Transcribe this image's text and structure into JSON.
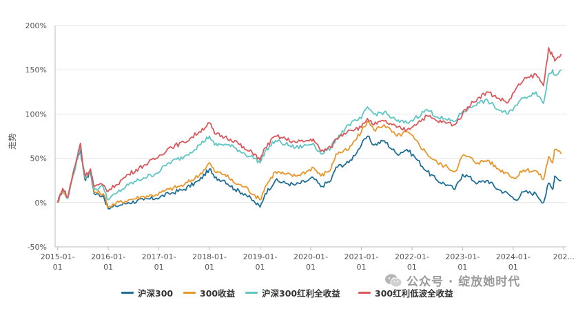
{
  "colors": {
    "hs300": "#1f6e96",
    "hs300_return": "#e8952a",
    "hs300_div": "#5fc4c4",
    "div_lowvol": "#d9585c",
    "grid": "#e6e6e6",
    "axis": "#bbbbbb"
  },
  "watermark": {
    "icon": "wechat-icon",
    "text": "公众号 · 绽放她时代"
  },
  "chart_data": {
    "type": "line",
    "ylabel": "走势",
    "ylim": [
      -50,
      200
    ],
    "ytick_values": [
      -50,
      0,
      50,
      100,
      150,
      200
    ],
    "ytick_labels": [
      "-50%",
      "0%",
      "50%",
      "100%",
      "150%",
      "200%"
    ],
    "xlim": [
      2014.95,
      2025.05
    ],
    "xtick_values": [
      2015,
      2016,
      2017,
      2018,
      2019,
      2020,
      2021,
      2022,
      2023,
      2024,
      2025
    ],
    "xtick_labels": [
      [
        "2015-01-",
        "01"
      ],
      [
        "2016-01-",
        "01"
      ],
      [
        "2017-01-",
        "01"
      ],
      [
        "2018-01-",
        "01"
      ],
      [
        "2019-01-",
        "01"
      ],
      [
        "2020-01-",
        "01"
      ],
      [
        "2021-01-",
        "01"
      ],
      [
        "2022-01-",
        "01"
      ],
      [
        "2023-01-",
        "01"
      ],
      [
        "2024-01-",
        "01"
      ],
      [
        "202...",
        ""
      ]
    ],
    "grid": "horizontal",
    "legend_position": "bottom",
    "series": [
      {
        "key": "hs300",
        "name": "沪深300",
        "points": [
          [
            2015.0,
            0
          ],
          [
            2015.1,
            15
          ],
          [
            2015.2,
            5
          ],
          [
            2015.3,
            30
          ],
          [
            2015.4,
            52
          ],
          [
            2015.45,
            60
          ],
          [
            2015.5,
            40
          ],
          [
            2015.55,
            25
          ],
          [
            2015.65,
            35
          ],
          [
            2015.72,
            10
          ],
          [
            2015.9,
            8
          ],
          [
            2016.0,
            -7
          ],
          [
            2016.15,
            -4
          ],
          [
            2016.4,
            0
          ],
          [
            2016.7,
            3
          ],
          [
            2016.95,
            5
          ],
          [
            2017.2,
            10
          ],
          [
            2017.5,
            15
          ],
          [
            2017.8,
            25
          ],
          [
            2018.0,
            38
          ],
          [
            2018.1,
            28
          ],
          [
            2018.3,
            25
          ],
          [
            2018.5,
            15
          ],
          [
            2018.7,
            10
          ],
          [
            2018.9,
            0
          ],
          [
            2019.0,
            -5
          ],
          [
            2019.1,
            10
          ],
          [
            2019.3,
            25
          ],
          [
            2019.5,
            22
          ],
          [
            2019.7,
            20
          ],
          [
            2019.95,
            25
          ],
          [
            2020.05,
            28
          ],
          [
            2020.2,
            18
          ],
          [
            2020.4,
            25
          ],
          [
            2020.5,
            40
          ],
          [
            2020.75,
            45
          ],
          [
            2021.0,
            65
          ],
          [
            2021.12,
            75
          ],
          [
            2021.25,
            65
          ],
          [
            2021.45,
            70
          ],
          [
            2021.7,
            55
          ],
          [
            2021.9,
            60
          ],
          [
            2022.05,
            52
          ],
          [
            2022.3,
            35
          ],
          [
            2022.5,
            25
          ],
          [
            2022.7,
            20
          ],
          [
            2022.85,
            15
          ],
          [
            2023.0,
            32
          ],
          [
            2023.1,
            30
          ],
          [
            2023.3,
            22
          ],
          [
            2023.5,
            25
          ],
          [
            2023.7,
            15
          ],
          [
            2023.9,
            10
          ],
          [
            2024.05,
            3
          ],
          [
            2024.2,
            12
          ],
          [
            2024.45,
            10
          ],
          [
            2024.6,
            0
          ],
          [
            2024.7,
            22
          ],
          [
            2024.78,
            15
          ],
          [
            2024.82,
            30
          ],
          [
            2024.95,
            25
          ]
        ]
      },
      {
        "key": "hs300_return",
        "name": "300收益",
        "points": [
          [
            2015.0,
            0
          ],
          [
            2015.1,
            15
          ],
          [
            2015.2,
            5
          ],
          [
            2015.3,
            32
          ],
          [
            2015.4,
            54
          ],
          [
            2015.45,
            63
          ],
          [
            2015.5,
            42
          ],
          [
            2015.55,
            27
          ],
          [
            2015.65,
            37
          ],
          [
            2015.72,
            12
          ],
          [
            2015.9,
            10
          ],
          [
            2016.0,
            -5
          ],
          [
            2016.15,
            -1
          ],
          [
            2016.4,
            3
          ],
          [
            2016.7,
            7
          ],
          [
            2016.95,
            9
          ],
          [
            2017.2,
            15
          ],
          [
            2017.5,
            20
          ],
          [
            2017.8,
            31
          ],
          [
            2018.0,
            45
          ],
          [
            2018.1,
            35
          ],
          [
            2018.3,
            32
          ],
          [
            2018.5,
            22
          ],
          [
            2018.7,
            18
          ],
          [
            2018.9,
            8
          ],
          [
            2019.0,
            3
          ],
          [
            2019.1,
            18
          ],
          [
            2019.3,
            35
          ],
          [
            2019.5,
            32
          ],
          [
            2019.7,
            30
          ],
          [
            2019.95,
            36
          ],
          [
            2020.05,
            40
          ],
          [
            2020.2,
            30
          ],
          [
            2020.4,
            38
          ],
          [
            2020.5,
            55
          ],
          [
            2020.75,
            60
          ],
          [
            2021.0,
            80
          ],
          [
            2021.12,
            92
          ],
          [
            2021.25,
            82
          ],
          [
            2021.45,
            88
          ],
          [
            2021.7,
            75
          ],
          [
            2021.9,
            80
          ],
          [
            2022.05,
            72
          ],
          [
            2022.3,
            55
          ],
          [
            2022.5,
            45
          ],
          [
            2022.7,
            40
          ],
          [
            2022.85,
            35
          ],
          [
            2023.0,
            53
          ],
          [
            2023.1,
            52
          ],
          [
            2023.3,
            45
          ],
          [
            2023.5,
            48
          ],
          [
            2023.7,
            38
          ],
          [
            2023.9,
            33
          ],
          [
            2024.05,
            27
          ],
          [
            2024.2,
            37
          ],
          [
            2024.45,
            36
          ],
          [
            2024.6,
            26
          ],
          [
            2024.7,
            52
          ],
          [
            2024.78,
            45
          ],
          [
            2024.82,
            60
          ],
          [
            2024.95,
            55
          ]
        ]
      },
      {
        "key": "hs300_div",
        "name": "沪深300红利全收益",
        "points": [
          [
            2015.0,
            0
          ],
          [
            2015.1,
            15
          ],
          [
            2015.2,
            5
          ],
          [
            2015.3,
            30
          ],
          [
            2015.4,
            50
          ],
          [
            2015.45,
            65
          ],
          [
            2015.5,
            40
          ],
          [
            2015.55,
            28
          ],
          [
            2015.65,
            35
          ],
          [
            2015.72,
            15
          ],
          [
            2015.9,
            18
          ],
          [
            2016.0,
            3
          ],
          [
            2016.15,
            10
          ],
          [
            2016.4,
            20
          ],
          [
            2016.7,
            28
          ],
          [
            2016.95,
            33
          ],
          [
            2017.2,
            45
          ],
          [
            2017.5,
            52
          ],
          [
            2017.8,
            65
          ],
          [
            2018.0,
            75
          ],
          [
            2018.1,
            65
          ],
          [
            2018.3,
            66
          ],
          [
            2018.5,
            62
          ],
          [
            2018.7,
            55
          ],
          [
            2018.9,
            50
          ],
          [
            2019.0,
            45
          ],
          [
            2019.1,
            58
          ],
          [
            2019.3,
            70
          ],
          [
            2019.5,
            66
          ],
          [
            2019.7,
            62
          ],
          [
            2019.95,
            65
          ],
          [
            2020.05,
            67
          ],
          [
            2020.2,
            55
          ],
          [
            2020.4,
            62
          ],
          [
            2020.5,
            72
          ],
          [
            2020.75,
            88
          ],
          [
            2021.0,
            95
          ],
          [
            2021.12,
            108
          ],
          [
            2021.25,
            100
          ],
          [
            2021.45,
            102
          ],
          [
            2021.7,
            92
          ],
          [
            2021.9,
            90
          ],
          [
            2022.05,
            95
          ],
          [
            2022.3,
            105
          ],
          [
            2022.5,
            97
          ],
          [
            2022.7,
            93
          ],
          [
            2022.85,
            92
          ],
          [
            2023.0,
            103
          ],
          [
            2023.1,
            105
          ],
          [
            2023.3,
            113
          ],
          [
            2023.5,
            115
          ],
          [
            2023.7,
            105
          ],
          [
            2023.9,
            100
          ],
          [
            2024.05,
            110
          ],
          [
            2024.2,
            118
          ],
          [
            2024.45,
            125
          ],
          [
            2024.6,
            112
          ],
          [
            2024.7,
            145
          ],
          [
            2024.78,
            150
          ],
          [
            2024.82,
            144
          ],
          [
            2024.95,
            150
          ]
        ]
      },
      {
        "key": "div_lowvol",
        "name": "300红利低波全收益",
        "points": [
          [
            2015.0,
            0
          ],
          [
            2015.1,
            16
          ],
          [
            2015.2,
            6
          ],
          [
            2015.3,
            32
          ],
          [
            2015.4,
            55
          ],
          [
            2015.45,
            67
          ],
          [
            2015.5,
            42
          ],
          [
            2015.55,
            30
          ],
          [
            2015.65,
            38
          ],
          [
            2015.72,
            18
          ],
          [
            2015.9,
            20
          ],
          [
            2016.0,
            13
          ],
          [
            2016.15,
            20
          ],
          [
            2016.4,
            32
          ],
          [
            2016.7,
            42
          ],
          [
            2016.95,
            50
          ],
          [
            2017.2,
            62
          ],
          [
            2017.5,
            68
          ],
          [
            2017.8,
            80
          ],
          [
            2018.0,
            90
          ],
          [
            2018.1,
            78
          ],
          [
            2018.3,
            74
          ],
          [
            2018.5,
            70
          ],
          [
            2018.7,
            60
          ],
          [
            2018.9,
            55
          ],
          [
            2019.0,
            48
          ],
          [
            2019.1,
            62
          ],
          [
            2019.3,
            75
          ],
          [
            2019.5,
            72
          ],
          [
            2019.7,
            68
          ],
          [
            2019.95,
            70
          ],
          [
            2020.05,
            72
          ],
          [
            2020.2,
            58
          ],
          [
            2020.4,
            62
          ],
          [
            2020.5,
            72
          ],
          [
            2020.75,
            82
          ],
          [
            2021.0,
            85
          ],
          [
            2021.12,
            95
          ],
          [
            2021.25,
            88
          ],
          [
            2021.45,
            92
          ],
          [
            2021.7,
            85
          ],
          [
            2021.9,
            82
          ],
          [
            2022.05,
            88
          ],
          [
            2022.3,
            98
          ],
          [
            2022.5,
            92
          ],
          [
            2022.7,
            90
          ],
          [
            2022.85,
            88
          ],
          [
            2023.0,
            100
          ],
          [
            2023.1,
            108
          ],
          [
            2023.3,
            118
          ],
          [
            2023.5,
            125
          ],
          [
            2023.7,
            118
          ],
          [
            2023.9,
            113
          ],
          [
            2024.05,
            128
          ],
          [
            2024.2,
            138
          ],
          [
            2024.45,
            145
          ],
          [
            2024.6,
            132
          ],
          [
            2024.7,
            175
          ],
          [
            2024.78,
            165
          ],
          [
            2024.82,
            160
          ],
          [
            2024.95,
            168
          ]
        ]
      }
    ]
  }
}
